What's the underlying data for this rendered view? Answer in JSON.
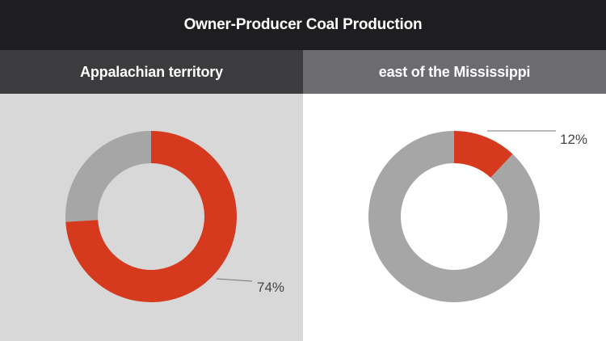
{
  "title": "Owner-Producer Coal Production",
  "colors": {
    "highlight": "#d63a1e",
    "rest": "#a6a6a6"
  },
  "chart_data": [
    {
      "type": "pie",
      "title": "Appalachian territory",
      "values": [
        74,
        26
      ],
      "value_label": "74%"
    },
    {
      "type": "pie",
      "title": "east of the Mississippi",
      "values": [
        12,
        88
      ],
      "value_label": "12%"
    }
  ]
}
